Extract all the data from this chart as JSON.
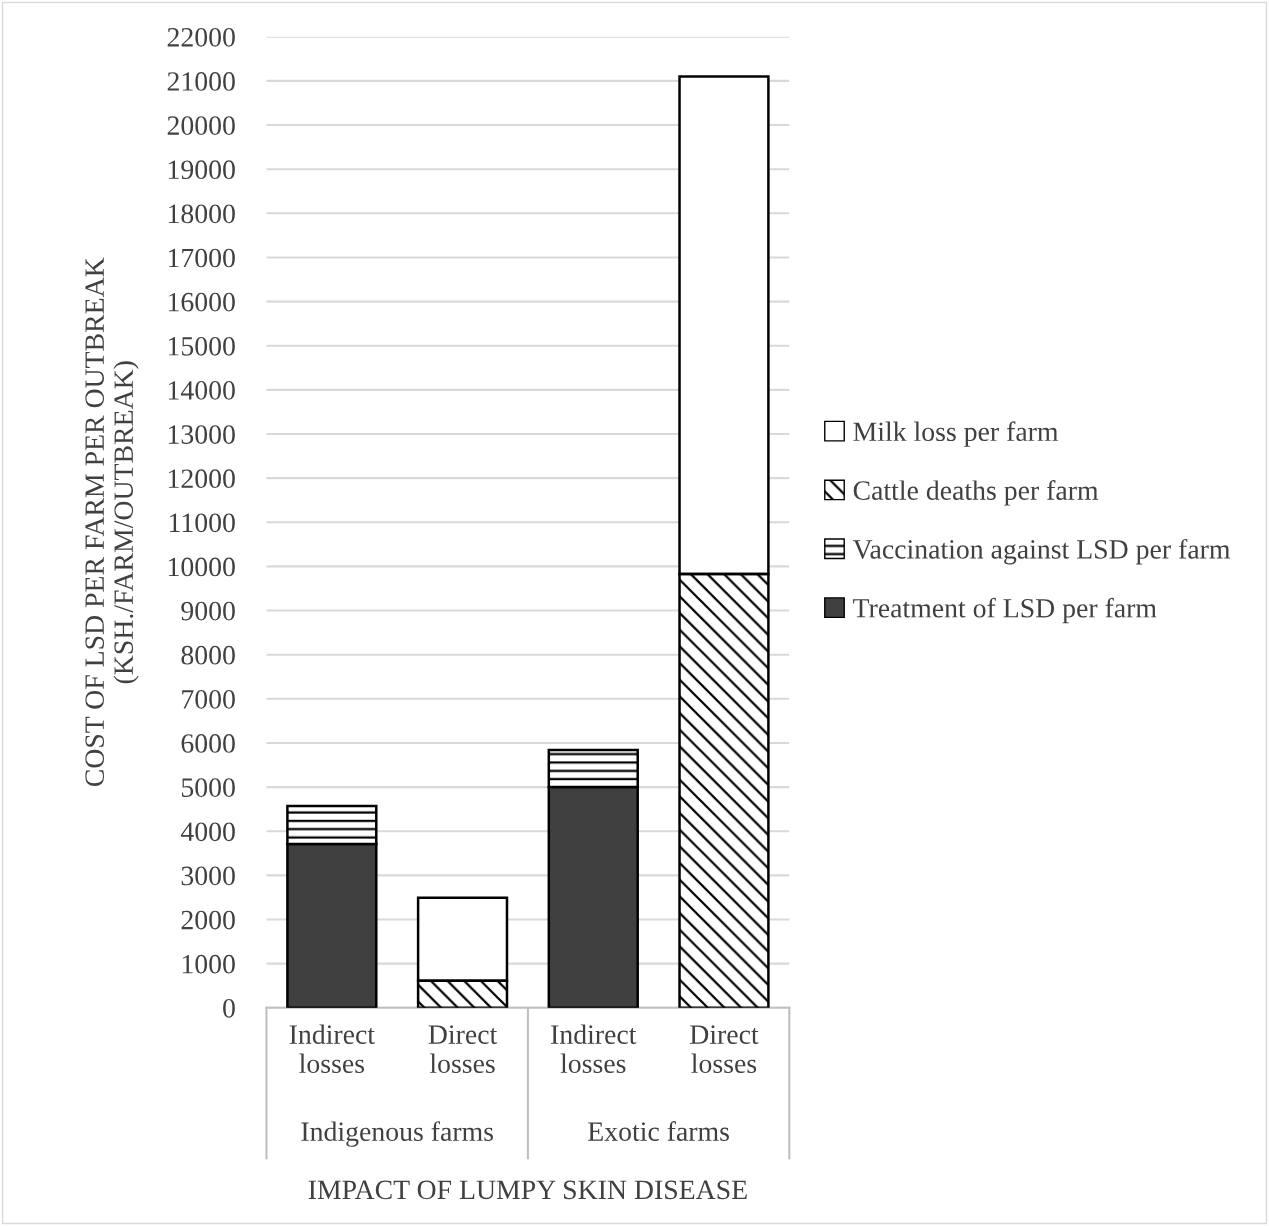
{
  "chart_data": {
    "type": "bar",
    "stacked": true,
    "categories": [
      "Indirect\nlosses",
      "Direct\nlosses",
      "Indirect\nlosses",
      "Direct\nlosses"
    ],
    "series": [
      {
        "name": "Treatment of LSD per farm",
        "color": "#404040",
        "values": [
          3710,
          null,
          5000,
          null
        ]
      },
      {
        "name": "Vaccination against LSD per farm",
        "color": "#ffffff",
        "values": [
          860,
          null,
          840,
          null
        ]
      },
      {
        "name": "Cattle deaths per farm",
        "color": "#ffffff",
        "values": [
          null,
          610,
          null,
          9830
        ]
      },
      {
        "name": "Milk loss per farm",
        "color": "#ffffff",
        "values": [
          null,
          1880,
          null,
          11270
        ]
      }
    ],
    "ylim": [
      0,
      22000
    ],
    "yticks": [
      0,
      1000,
      2000,
      3000,
      4000,
      5000,
      6000,
      7000,
      8000,
      9000,
      10000,
      11000,
      12000,
      13000,
      14000,
      15000,
      16000,
      17000,
      18000,
      19000,
      20000,
      21000,
      22000
    ],
    "ylabel": "COST OF LSD PER FARM PER OUTBREAK\n(KSH./FARM/OUTBREAK)",
    "xlabel": "IMPACT OF LUMPY SKIN DISEASE",
    "annotations": [
      "Indigenous farms",
      "Exotic farms"
    ],
    "grid": "y",
    "legend": "right"
  }
}
